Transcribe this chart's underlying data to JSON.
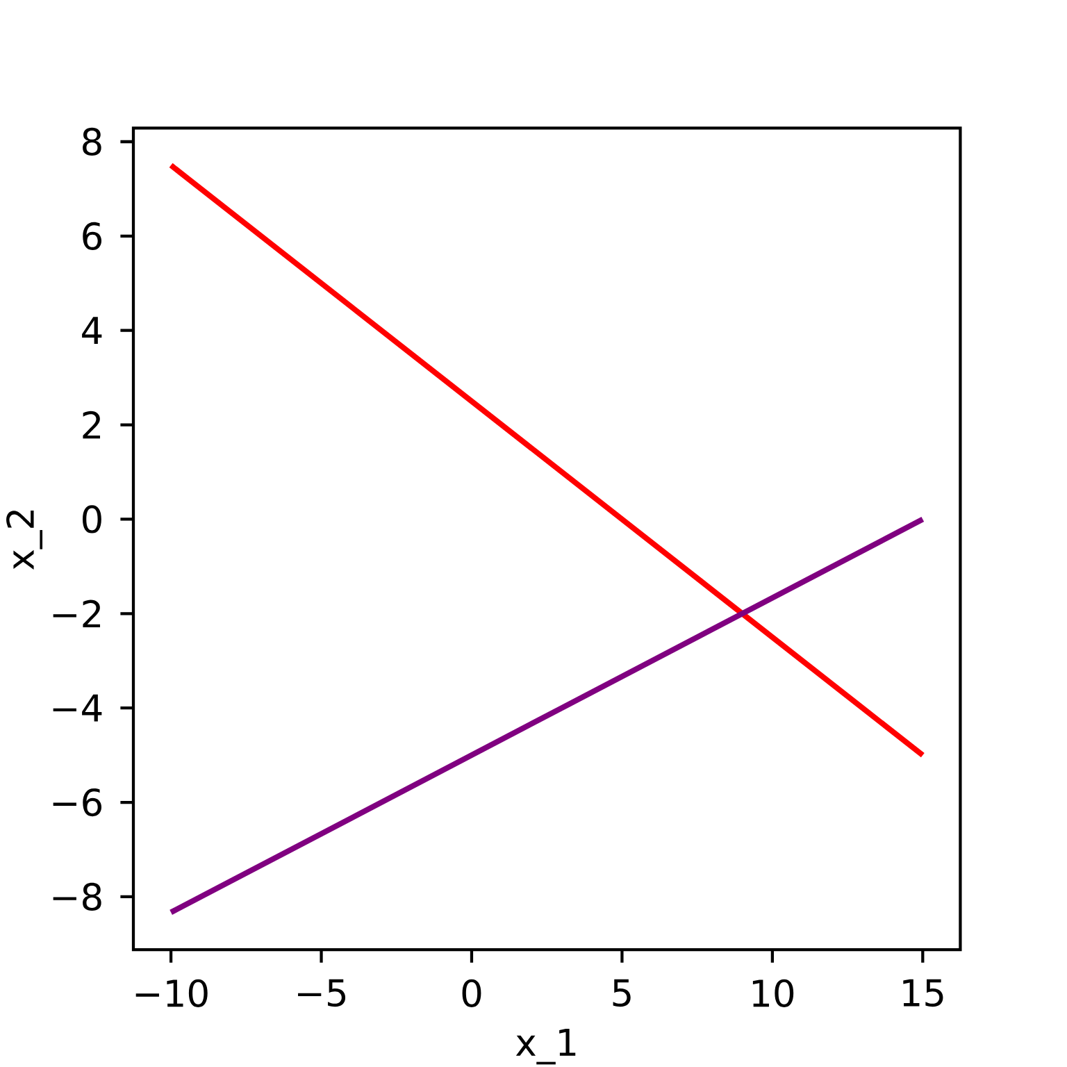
{
  "chart_data": {
    "type": "line",
    "xlabel": "x_1",
    "ylabel": "x_2",
    "x": [
      -10,
      15
    ],
    "series": [
      {
        "color": "#ff0000",
        "values": [
          7.5,
          -5
        ]
      },
      {
        "color": "#800080",
        "values": [
          -8.33,
          0
        ]
      }
    ],
    "xlim": [
      -11.25,
      16.25
    ],
    "ylim": [
      -9.12,
      8.29
    ],
    "xticks": [
      {
        "value": -10,
        "label": "−10"
      },
      {
        "value": -5,
        "label": "−5"
      },
      0,
      5,
      10,
      15
    ],
    "yticks": [
      {
        "value": -8,
        "label": "−8"
      },
      {
        "value": -6,
        "label": "−6"
      },
      {
        "value": -4,
        "label": "−4"
      },
      {
        "value": -2,
        "label": "−2"
      },
      0,
      2,
      4,
      6,
      8
    ],
    "line_style": "solid"
  }
}
